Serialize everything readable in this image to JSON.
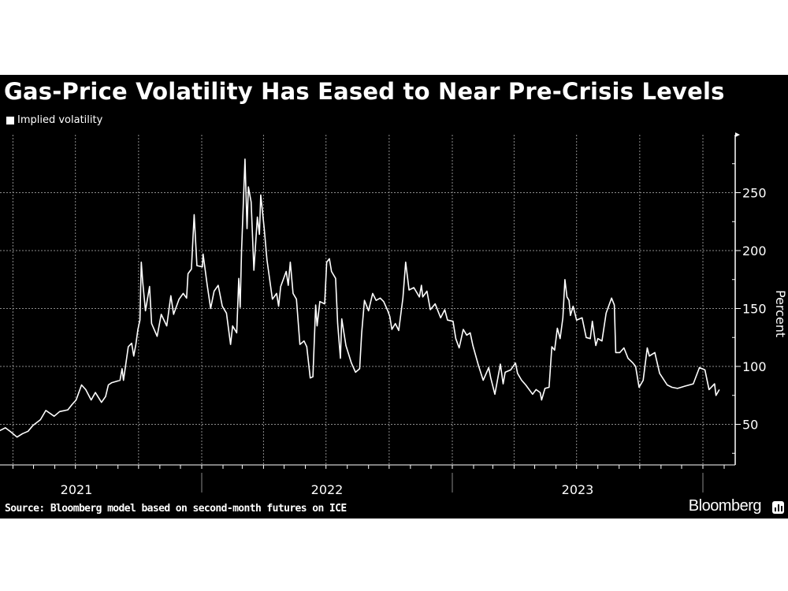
{
  "title": "Gas-Price Volatility Has Eased to Near Pre-Crisis Levels",
  "source": "Source: Bloomberg model based on second-month futures on ICE",
  "brand": "Bloomberg",
  "colors": {
    "background": "#000000",
    "line": "#ffffff",
    "grid": "#8c8c8c"
  },
  "chart_data": {
    "type": "line",
    "title": "Gas-Price Volatility Has Eased to Near Pre-Crisis Levels",
    "ylabel": "Percent",
    "xlabel": "",
    "ylim": [
      15,
      300
    ],
    "yticks": [
      50,
      100,
      150,
      200,
      250
    ],
    "ytick_labels": [
      "50",
      "100",
      "150",
      "200",
      "250"
    ],
    "xtick_labels": [
      "2021",
      "2022",
      "2023"
    ],
    "grid": true,
    "y_axis_side": "right",
    "legend": "top-left",
    "series": [
      {
        "name": "Implied volatility",
        "points": [
          [
            "2021-03-11",
            44
          ],
          [
            "2021-03-21",
            47
          ],
          [
            "2021-03-29",
            43.5
          ],
          [
            "2021-04-07",
            39
          ],
          [
            "2021-04-15",
            42
          ],
          [
            "2021-04-23",
            44
          ],
          [
            "2021-04-30",
            49
          ],
          [
            "2021-05-11",
            54
          ],
          [
            "2021-05-19",
            62
          ],
          [
            "2021-05-31",
            57
          ],
          [
            "2021-06-08",
            61
          ],
          [
            "2021-06-20",
            62.5
          ],
          [
            "2021-06-26",
            67
          ],
          [
            "2021-07-02",
            71
          ],
          [
            "2021-07-10",
            84
          ],
          [
            "2021-07-16",
            80
          ],
          [
            "2021-07-24",
            71
          ],
          [
            "2021-07-30",
            77.5
          ],
          [
            "2021-08-08",
            69
          ],
          [
            "2021-08-14",
            74
          ],
          [
            "2021-08-18",
            84
          ],
          [
            "2021-08-23",
            86
          ],
          [
            "2021-09-04",
            88
          ],
          [
            "2021-09-07",
            98
          ],
          [
            "2021-09-09",
            88
          ],
          [
            "2021-09-16",
            117
          ],
          [
            "2021-09-21",
            120
          ],
          [
            "2021-09-24",
            109
          ],
          [
            "2021-09-27",
            119
          ],
          [
            "2021-09-30",
            132
          ],
          [
            "2021-10-03",
            140
          ],
          [
            "2021-10-05",
            190
          ],
          [
            "2021-10-07",
            173
          ],
          [
            "2021-10-11",
            148
          ],
          [
            "2021-10-17",
            169
          ],
          [
            "2021-10-20",
            137
          ],
          [
            "2021-10-28",
            126
          ],
          [
            "2021-11-03",
            145
          ],
          [
            "2021-11-11",
            135
          ],
          [
            "2021-11-17",
            161
          ],
          [
            "2021-11-21",
            145
          ],
          [
            "2021-11-29",
            158
          ],
          [
            "2021-12-05",
            163
          ],
          [
            "2021-12-10",
            159
          ],
          [
            "2021-12-12",
            180
          ],
          [
            "2021-12-17",
            184
          ],
          [
            "2021-12-21",
            231
          ],
          [
            "2021-12-25",
            187
          ],
          [
            "2022-01-02",
            186
          ],
          [
            "2022-01-03",
            197
          ],
          [
            "2022-01-09",
            170
          ],
          [
            "2022-01-14",
            150
          ],
          [
            "2022-01-19",
            165
          ],
          [
            "2022-01-25",
            170
          ],
          [
            "2022-01-31",
            152
          ],
          [
            "2022-02-06",
            146
          ],
          [
            "2022-02-12",
            119
          ],
          [
            "2022-02-15",
            135
          ],
          [
            "2022-02-21",
            129
          ],
          [
            "2022-02-24",
            176
          ],
          [
            "2022-02-26",
            151
          ],
          [
            "2022-02-28",
            199
          ],
          [
            "2022-03-05",
            279
          ],
          [
            "2022-03-08",
            219
          ],
          [
            "2022-03-10",
            255
          ],
          [
            "2022-03-14",
            242
          ],
          [
            "2022-03-18",
            183
          ],
          [
            "2022-03-23",
            229
          ],
          [
            "2022-03-26",
            214
          ],
          [
            "2022-03-28",
            248
          ],
          [
            "2022-04-02",
            219
          ],
          [
            "2022-04-06",
            192
          ],
          [
            "2022-04-14",
            158
          ],
          [
            "2022-04-20",
            163
          ],
          [
            "2022-04-23",
            152
          ],
          [
            "2022-04-26",
            169
          ],
          [
            "2022-05-04",
            182
          ],
          [
            "2022-05-07",
            170
          ],
          [
            "2022-05-10",
            190
          ],
          [
            "2022-05-14",
            163
          ],
          [
            "2022-05-19",
            158
          ],
          [
            "2022-05-24",
            119
          ],
          [
            "2022-05-30",
            122
          ],
          [
            "2022-06-03",
            117
          ],
          [
            "2022-06-08",
            90
          ],
          [
            "2022-06-12",
            91
          ],
          [
            "2022-06-16",
            153
          ],
          [
            "2022-06-18",
            135
          ],
          [
            "2022-06-22",
            156
          ],
          [
            "2022-06-29",
            154
          ],
          [
            "2022-07-02",
            190
          ],
          [
            "2022-07-06",
            193
          ],
          [
            "2022-07-09",
            182
          ],
          [
            "2022-07-15",
            176
          ],
          [
            "2022-07-18",
            137
          ],
          [
            "2022-07-22",
            107
          ],
          [
            "2022-07-24",
            141
          ],
          [
            "2022-07-30",
            118
          ],
          [
            "2022-08-07",
            103
          ],
          [
            "2022-08-13",
            95
          ],
          [
            "2022-08-19",
            98
          ],
          [
            "2022-08-22",
            129
          ],
          [
            "2022-08-26",
            157
          ],
          [
            "2022-09-01",
            148
          ],
          [
            "2022-09-07",
            163
          ],
          [
            "2022-09-12",
            157
          ],
          [
            "2022-09-18",
            159
          ],
          [
            "2022-09-23",
            156
          ],
          [
            "2022-09-29",
            148
          ],
          [
            "2022-10-02",
            143
          ],
          [
            "2022-10-05",
            132
          ],
          [
            "2022-10-10",
            137
          ],
          [
            "2022-10-15",
            131
          ],
          [
            "2022-10-21",
            159
          ],
          [
            "2022-10-25",
            190
          ],
          [
            "2022-10-30",
            166
          ],
          [
            "2022-11-06",
            168
          ],
          [
            "2022-11-14",
            160
          ],
          [
            "2022-11-17",
            170
          ],
          [
            "2022-11-19",
            160
          ],
          [
            "2022-11-25",
            165
          ],
          [
            "2022-11-30",
            149
          ],
          [
            "2022-12-07",
            154
          ],
          [
            "2022-12-15",
            142
          ],
          [
            "2022-12-21",
            149
          ],
          [
            "2022-12-25",
            140
          ],
          [
            "2023-01-02",
            139
          ],
          [
            "2023-01-06",
            124
          ],
          [
            "2023-01-11",
            116
          ],
          [
            "2023-01-17",
            132
          ],
          [
            "2023-01-22",
            127
          ],
          [
            "2023-01-27",
            129
          ],
          [
            "2023-01-31",
            118
          ],
          [
            "2023-02-08",
            101
          ],
          [
            "2023-02-15",
            88
          ],
          [
            "2023-02-23",
            99
          ],
          [
            "2023-02-26",
            90
          ],
          [
            "2023-03-04",
            76
          ],
          [
            "2023-03-12",
            102
          ],
          [
            "2023-03-16",
            85
          ],
          [
            "2023-03-19",
            95
          ],
          [
            "2023-03-27",
            97
          ],
          [
            "2023-04-03",
            103
          ],
          [
            "2023-04-06",
            94
          ],
          [
            "2023-04-12",
            88
          ],
          [
            "2023-04-18",
            84
          ],
          [
            "2023-04-28",
            76
          ],
          [
            "2023-05-03",
            80
          ],
          [
            "2023-05-09",
            77.5
          ],
          [
            "2023-05-11",
            71
          ],
          [
            "2023-05-16",
            81
          ],
          [
            "2023-05-22",
            82
          ],
          [
            "2023-05-26",
            117
          ],
          [
            "2023-05-30",
            114
          ],
          [
            "2023-06-03",
            133
          ],
          [
            "2023-06-07",
            124
          ],
          [
            "2023-06-11",
            142
          ],
          [
            "2023-06-14",
            175
          ],
          [
            "2023-06-17",
            160
          ],
          [
            "2023-06-20",
            157
          ],
          [
            "2023-06-22",
            144
          ],
          [
            "2023-06-26",
            152
          ],
          [
            "2023-07-01",
            140
          ],
          [
            "2023-07-09",
            142
          ],
          [
            "2023-07-15",
            125
          ],
          [
            "2023-07-21",
            124
          ],
          [
            "2023-07-24",
            139
          ],
          [
            "2023-07-29",
            118
          ],
          [
            "2023-08-01",
            124
          ],
          [
            "2023-08-07",
            122
          ],
          [
            "2023-08-13",
            146
          ],
          [
            "2023-08-21",
            159
          ],
          [
            "2023-08-25",
            153
          ],
          [
            "2023-08-27",
            112
          ],
          [
            "2023-09-02",
            112
          ],
          [
            "2023-09-08",
            116
          ],
          [
            "2023-09-14",
            107
          ],
          [
            "2023-09-21",
            103
          ],
          [
            "2023-09-25",
            100
          ],
          [
            "2023-09-30",
            82
          ],
          [
            "2023-10-06",
            88
          ],
          [
            "2023-10-12",
            116
          ],
          [
            "2023-10-15",
            109
          ],
          [
            "2023-10-23",
            112
          ],
          [
            "2023-10-30",
            94
          ],
          [
            "2023-11-10",
            84
          ],
          [
            "2023-11-17",
            82
          ],
          [
            "2023-11-25",
            81
          ],
          [
            "2023-12-06",
            83
          ],
          [
            "2023-12-18",
            85
          ],
          [
            "2023-12-27",
            99
          ],
          [
            "2024-01-04",
            97
          ],
          [
            "2024-01-10",
            80
          ],
          [
            "2024-01-18",
            85
          ],
          [
            "2024-01-20",
            75
          ],
          [
            "2024-01-25",
            80
          ]
        ]
      }
    ]
  }
}
